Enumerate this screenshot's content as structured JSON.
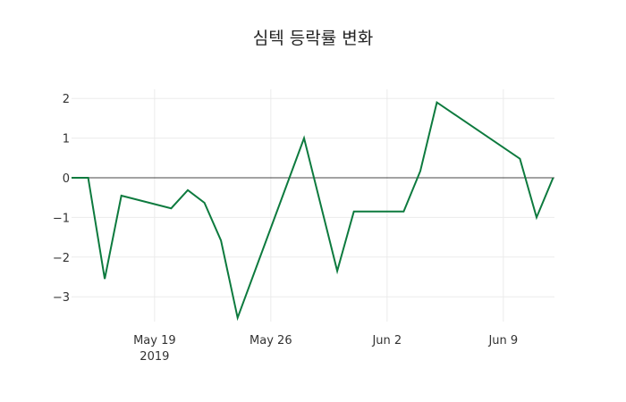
{
  "chart_data": {
    "type": "line",
    "title": "심텍 등락률 변화",
    "xlabel": "",
    "ylabel": "",
    "x": [
      "2019-05-14",
      "2019-05-15",
      "2019-05-16",
      "2019-05-17",
      "2019-05-20",
      "2019-05-21",
      "2019-05-22",
      "2019-05-23",
      "2019-05-24",
      "2019-05-28",
      "2019-05-30",
      "2019-05-31",
      "2019-06-03",
      "2019-06-04",
      "2019-06-05",
      "2019-06-10",
      "2019-06-11",
      "2019-06-12"
    ],
    "series": [
      {
        "name": "등락률",
        "color": "#0d7a3e",
        "values": [
          0,
          0,
          -2.55,
          -0.45,
          -0.77,
          -0.31,
          -0.63,
          -1.58,
          -3.53,
          1.0,
          -2.35,
          -0.85,
          -0.85,
          0.17,
          1.9,
          0.48,
          -1.0,
          0
        ]
      }
    ],
    "x_ticks": [
      {
        "date": "2019-05-19",
        "label": "May 19",
        "sublabel": "2019"
      },
      {
        "date": "2019-05-26",
        "label": "May 26",
        "sublabel": ""
      },
      {
        "date": "2019-06-02",
        "label": "Jun 2",
        "sublabel": ""
      },
      {
        "date": "2019-06-09",
        "label": "Jun 9",
        "sublabel": ""
      }
    ],
    "y_ticks": [
      2,
      1,
      0,
      -1,
      -2,
      -3
    ],
    "y_tick_labels": [
      "2",
      "1",
      "0",
      "−1",
      "−2",
      "−3"
    ],
    "ylim": [
      -3.7,
      2.2
    ],
    "xlim": [
      "2019-05-14",
      "2019-06-12"
    ],
    "grid": true,
    "zeroline": true,
    "legend": null
  }
}
